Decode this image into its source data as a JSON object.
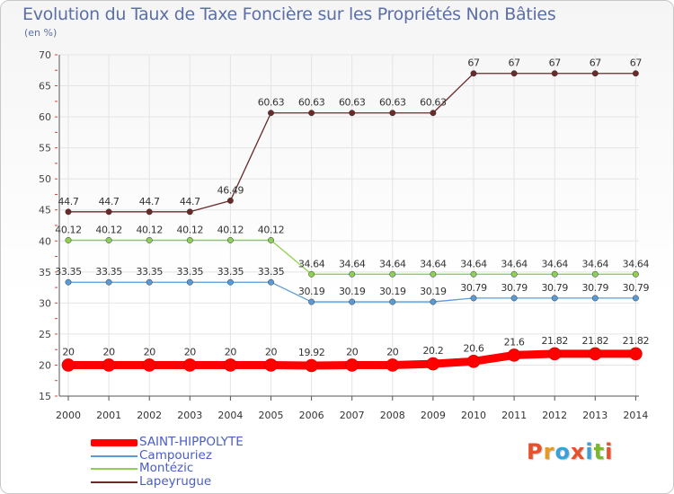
{
  "title": "Evolution du Taux de Taxe Foncière sur les Propriétés Non Bâties",
  "subtitle": "(en %)",
  "logo": {
    "letters": [
      "P",
      "r",
      "o",
      "x",
      "i",
      "t",
      "i"
    ],
    "colors": [
      "#e8502a",
      "#e89a1a",
      "#3aa0d8",
      "#e8502a",
      "#3aa0d8",
      "#7ab830",
      "#e8502a"
    ]
  },
  "chart_data": {
    "type": "line",
    "title": "Evolution du Taux de Taxe Foncière sur les Propriétés Non Bâties",
    "ylabel": "(en %)",
    "categories": [
      "2000",
      "2001",
      "2002",
      "2003",
      "2004",
      "2005",
      "2006",
      "2007",
      "2008",
      "2009",
      "2010",
      "2011",
      "2012",
      "2013",
      "2014"
    ],
    "ylim": [
      15,
      70
    ],
    "yticks": [
      "15",
      "20",
      "25",
      "30",
      "35",
      "40",
      "45",
      "50",
      "55",
      "60",
      "65",
      "70"
    ],
    "series": [
      {
        "name": "Lapeyrugue",
        "color": "#6b2a2a",
        "values": [
          44.7,
          44.7,
          44.7,
          44.7,
          46.49,
          60.63,
          60.63,
          60.63,
          60.63,
          60.63,
          67,
          67,
          67,
          67,
          67
        ],
        "labels": [
          "44.7",
          "44.7",
          "44.7",
          "44.7",
          "46.49",
          "60.63",
          "60.63",
          "60.63",
          "60.63",
          "60.63",
          "67",
          "67",
          "67",
          "67",
          "67"
        ]
      },
      {
        "name": "Montézic",
        "color": "#8fd14f",
        "values": [
          40.12,
          40.12,
          40.12,
          40.12,
          40.12,
          40.12,
          34.64,
          34.64,
          34.64,
          34.64,
          34.64,
          34.64,
          34.64,
          34.64,
          34.64
        ],
        "labels": [
          "40.12",
          "40.12",
          "40.12",
          "40.12",
          "40.12",
          "40.12",
          "34.64",
          "34.64",
          "34.64",
          "34.64",
          "34.64",
          "34.64",
          "34.64",
          "34.64",
          "34.64"
        ]
      },
      {
        "name": "Campouriez",
        "color": "#5b9bd5",
        "values": [
          33.35,
          33.35,
          33.35,
          33.35,
          33.35,
          33.35,
          30.19,
          30.19,
          30.19,
          30.19,
          30.79,
          30.79,
          30.79,
          30.79,
          30.79
        ],
        "labels": [
          "33.35",
          "33.35",
          "33.35",
          "33.35",
          "33.35",
          "33.35",
          "30.19",
          "30.19",
          "30.19",
          "30.19",
          "30.79",
          "30.79",
          "30.79",
          "30.79",
          "30.79"
        ]
      },
      {
        "name": "SAINT-HIPPOLYTE",
        "color": "#ff0000",
        "values": [
          20,
          20,
          20,
          20,
          20,
          20,
          19.92,
          20,
          20,
          20.2,
          20.6,
          21.6,
          21.82,
          21.82,
          21.82
        ],
        "labels": [
          "20",
          "20",
          "20",
          "20",
          "20",
          "20",
          "19.92",
          "20",
          "20",
          "20.2",
          "20.6",
          "21.6",
          "21.82",
          "21.82",
          "21.82"
        ]
      }
    ],
    "legend": [
      "SAINT-HIPPOLYTE",
      "Campouriez",
      "Montézic",
      "Lapeyrugue"
    ]
  }
}
